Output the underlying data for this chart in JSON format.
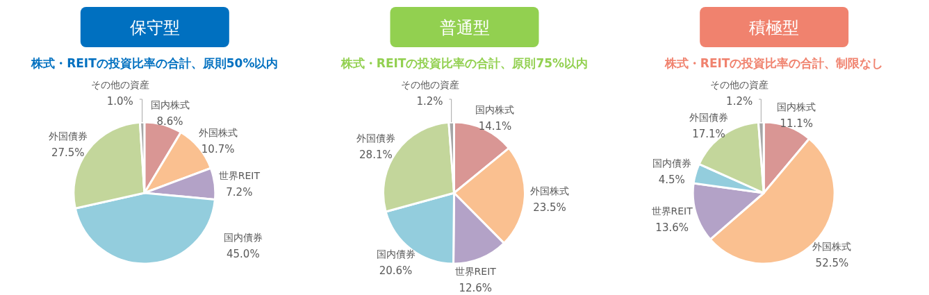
{
  "chart_data": [
    {
      "type": "pie",
      "title": "保守型",
      "subtitle": "株式・REITの投資比率の合計、原則50%以内",
      "categories": [
        "国内株式",
        "外国株式",
        "世界REIT",
        "国内債券",
        "外国債券",
        "その他の資産"
      ],
      "values": [
        8.6,
        10.7,
        7.2,
        45.0,
        27.5,
        1.0
      ],
      "value_labels": [
        "8.6%",
        "10.7%",
        "7.2%",
        "45.0%",
        "27.5%",
        "1.0%"
      ],
      "colors": [
        "#d99694",
        "#fac090",
        "#b3a2c7",
        "#93cddd",
        "#c3d69b",
        "#a6a6a6"
      ]
    },
    {
      "type": "pie",
      "title": "普通型",
      "subtitle": "株式・REITの投資比率の合計、原則75%以内",
      "categories": [
        "国内株式",
        "外国株式",
        "世界REIT",
        "国内債券",
        "外国債券",
        "その他の資産"
      ],
      "values": [
        14.1,
        23.5,
        12.6,
        20.6,
        28.1,
        1.2
      ],
      "value_labels": [
        "14.1%",
        "23.5%",
        "12.6%",
        "20.6%",
        "28.1%",
        "1.2%"
      ],
      "colors": [
        "#d99694",
        "#fac090",
        "#b3a2c7",
        "#93cddd",
        "#c3d69b",
        "#a6a6a6"
      ]
    },
    {
      "type": "pie",
      "title": "積極型",
      "subtitle": "株式・REITの投資比率の合計、制限なし",
      "categories": [
        "国内株式",
        "外国株式",
        "世界REIT",
        "国内債券",
        "外国債券",
        "その他の資産"
      ],
      "values": [
        11.1,
        52.5,
        13.6,
        4.5,
        17.1,
        1.2
      ],
      "value_labels": [
        "11.1%",
        "52.5%",
        "13.6%",
        "4.5%",
        "17.1%",
        "1.2%"
      ],
      "colors": [
        "#d99694",
        "#fac090",
        "#b3a2c7",
        "#93cddd",
        "#c3d69b",
        "#a6a6a6"
      ]
    }
  ]
}
